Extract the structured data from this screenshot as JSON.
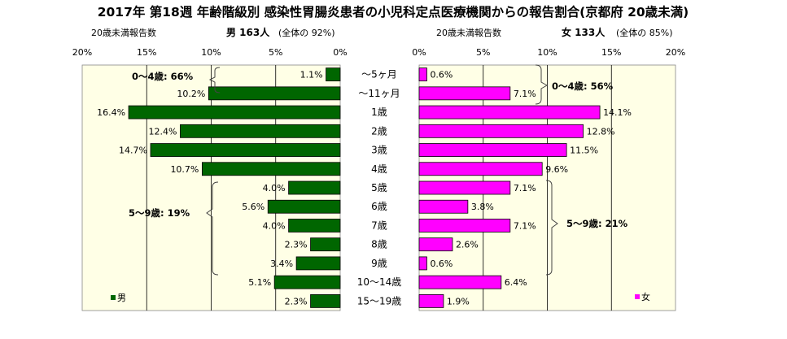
{
  "chart_data": {
    "type": "bar",
    "title": "2017年 第18週 年齢階級別 感染性胃腸炎患者の小児科定点医療機関からの報告割合(京都府 20歳未満)",
    "categories": [
      "～5ヶ月",
      "～11ヶ月",
      "1歳",
      "2歳",
      "3歳",
      "4歳",
      "5歳",
      "6歳",
      "7歳",
      "8歳",
      "9歳",
      "10～14歳",
      "15～19歳"
    ],
    "series": [
      {
        "name": "男",
        "color": "#006600",
        "values": [
          1.1,
          10.2,
          16.4,
          12.4,
          14.7,
          10.7,
          4.0,
          5.6,
          4.0,
          2.3,
          3.4,
          5.1,
          2.3
        ],
        "labels": [
          "1.1%",
          "10.2%",
          "16.4%",
          "12.4%",
          "14.7%",
          "10.7%",
          "4.0%",
          "5.6%",
          "4.0%",
          "2.3%",
          "3.4%",
          "5.1%",
          "2.3%"
        ],
        "header": {
          "sub": "20歳未満報告数",
          "main": "男 163人",
          "ratio": "(全体の 92%)"
        },
        "xticks": [
          "20%",
          "15%",
          "10%",
          "5%",
          "0%"
        ],
        "xlim": [
          0,
          20
        ],
        "direction": "reversed",
        "groups": [
          {
            "label": "0～4歳: 66%"
          },
          {
            "label": "5～9歳: 19%"
          }
        ]
      },
      {
        "name": "女",
        "color": "#ff00ff",
        "values": [
          0.6,
          7.1,
          14.1,
          12.8,
          11.5,
          9.6,
          7.1,
          3.8,
          7.1,
          2.6,
          0.6,
          6.4,
          1.9
        ],
        "labels": [
          "0.6%",
          "7.1%",
          "14.1%",
          "12.8%",
          "11.5%",
          "9.6%",
          "7.1%",
          "3.8%",
          "7.1%",
          "2.6%",
          "0.6%",
          "6.4%",
          "1.9%"
        ],
        "header": {
          "sub": "20歳未満報告数",
          "main": "女 133人",
          "ratio": "(全体の 85%)"
        },
        "xticks": [
          "0%",
          "5%",
          "10%",
          "15%",
          "20%"
        ],
        "xlim": [
          0,
          20
        ],
        "direction": "normal",
        "groups": [
          {
            "label": "0～4歳: 56%"
          },
          {
            "label": "5～9歳: 21%"
          }
        ]
      }
    ],
    "legend": {
      "male": "男",
      "female": "女",
      "placement": "bottom-left / bottom-right"
    },
    "grid": true,
    "colors": {
      "panel_bg": "#ffffe6",
      "grid": "#000000"
    }
  }
}
